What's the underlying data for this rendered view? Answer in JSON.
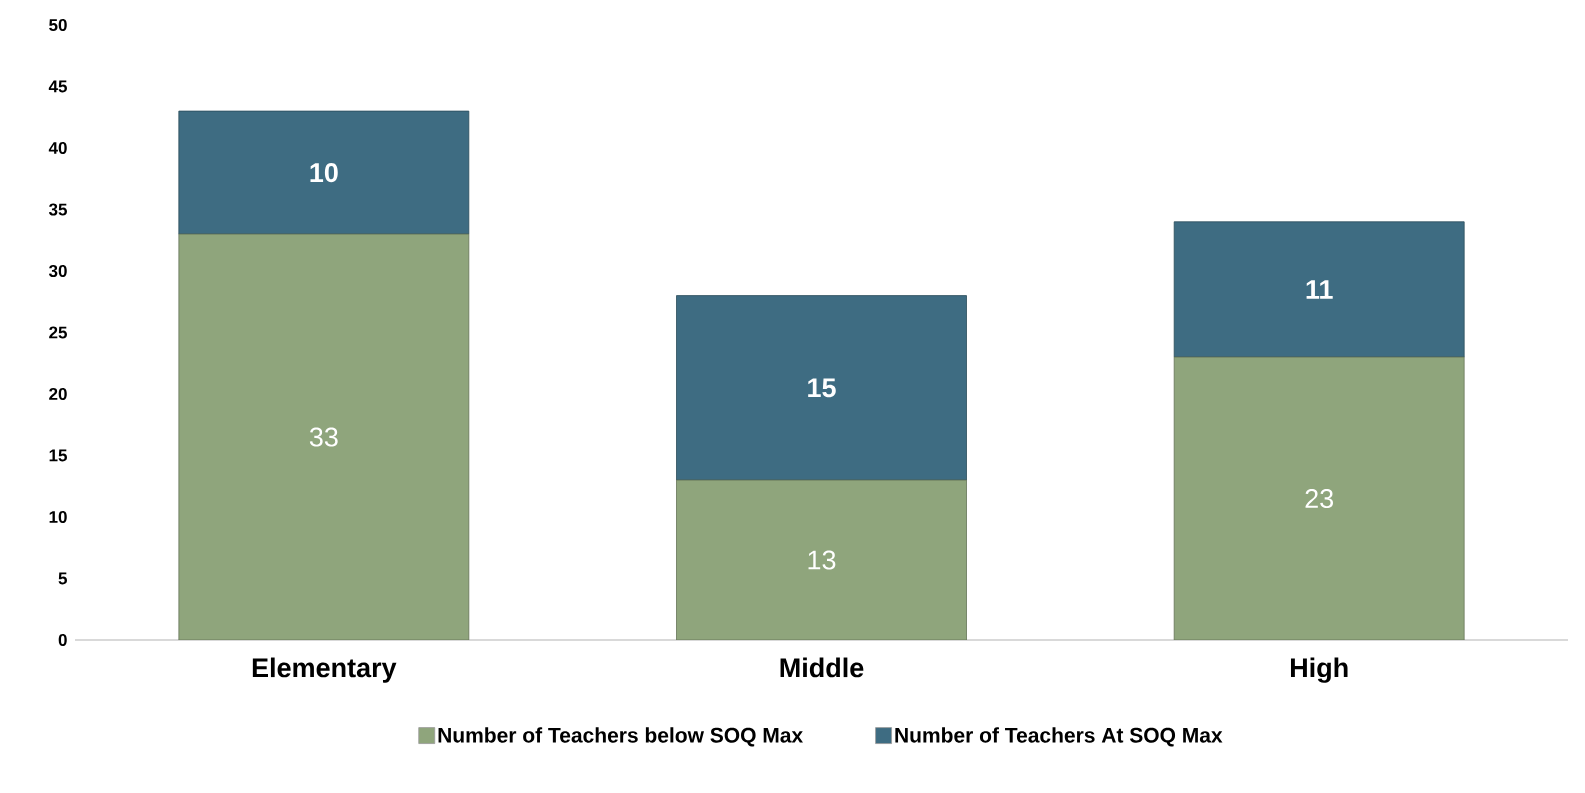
{
  "chart_data": {
    "type": "bar",
    "stacked": true,
    "categories": [
      "Elementary",
      "Middle",
      "High"
    ],
    "series": [
      {
        "name": "Number of Teachers below SOQ Max",
        "color": "#8fa57c",
        "values": [
          33,
          13,
          23
        ]
      },
      {
        "name": "Number of Teachers At SOQ Max",
        "color": "#3e6c82",
        "values": [
          10,
          15,
          11
        ]
      }
    ],
    "ylim": [
      0,
      50
    ],
    "yticks": [
      0,
      5,
      10,
      15,
      20,
      25,
      30,
      35,
      40,
      45,
      50
    ],
    "data_labels": true,
    "legend": "bottom",
    "grid": false
  }
}
